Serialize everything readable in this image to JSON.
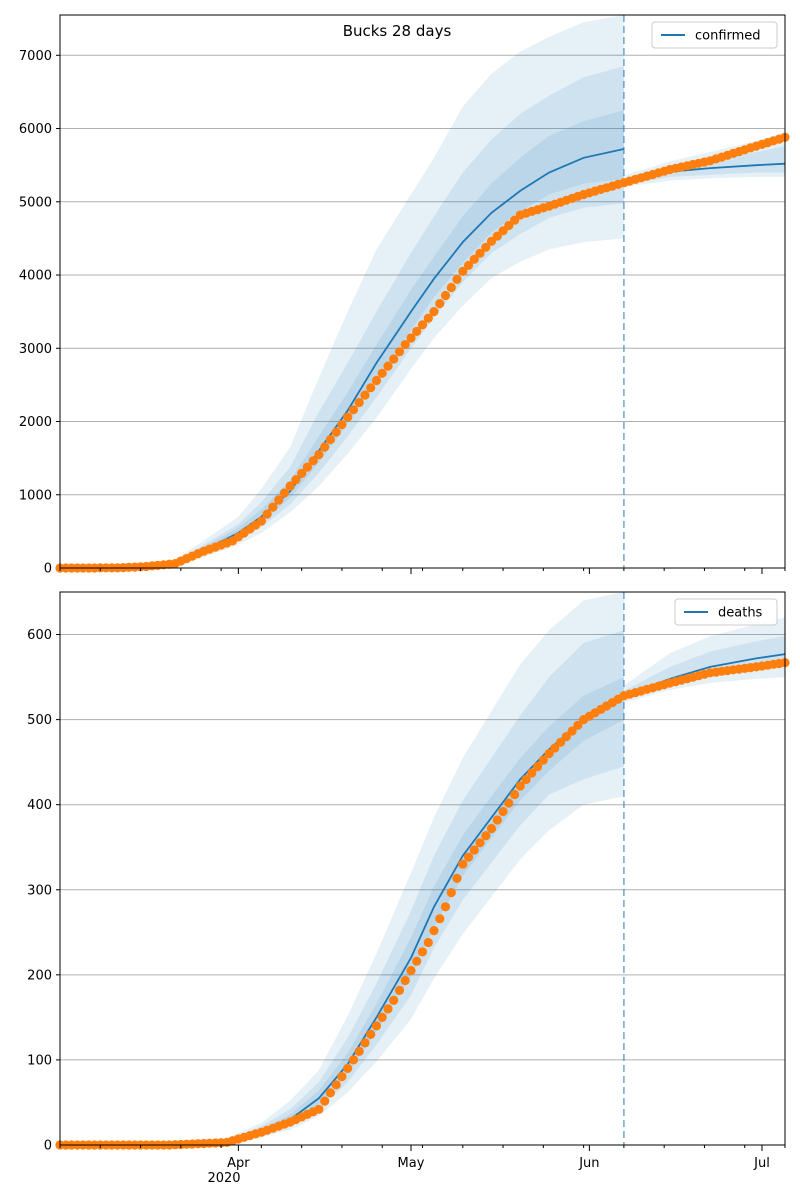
{
  "figure": {
    "title": "Bucks 28 days"
  },
  "colors": {
    "model_line": "#1f77b4",
    "observed_points": "#ff7f0e",
    "band": "#1f77b4",
    "grid": "#b0b0b0",
    "forecast_start_line": "#1f77b4"
  },
  "x_axis": {
    "start": "2020-03-01",
    "end": "2020-07-05",
    "major_ticks": [
      {
        "date": "2020-04-01",
        "label": "Apr"
      },
      {
        "date": "2020-05-01",
        "label": "May"
      },
      {
        "date": "2020-06-01",
        "label": "Jun"
      },
      {
        "date": "2020-07-01",
        "label": "Jul"
      }
    ],
    "year_label": "2020",
    "forecast_start": "2020-06-07"
  },
  "chart_data": [
    {
      "type": "line",
      "legend": "confirmed",
      "legend_position": "top-right",
      "grid": "y",
      "ylim": [
        0,
        7550
      ],
      "yticks": [
        0,
        1000,
        2000,
        3000,
        4000,
        5000,
        6000,
        7000
      ],
      "model": {
        "x": [
          "2020-03-01",
          "2020-03-10",
          "2020-03-20",
          "2020-03-25",
          "2020-04-01",
          "2020-04-05",
          "2020-04-10",
          "2020-04-15",
          "2020-04-20",
          "2020-04-25",
          "2020-05-01",
          "2020-05-05",
          "2020-05-10",
          "2020-05-15",
          "2020-05-20",
          "2020-05-25",
          "2020-05-31",
          "2020-06-07"
        ],
        "y": [
          0,
          5,
          40,
          200,
          480,
          700,
          1050,
          1600,
          2150,
          2800,
          3500,
          3950,
          4450,
          4850,
          5150,
          5400,
          5600,
          5720
        ],
        "bands": [
          {
            "lower": [
              0,
              0,
              20,
              120,
              320,
              480,
              760,
              1120,
              1560,
              2050,
              2720,
              3140,
              3580,
              3960,
              4180,
              4350,
              4450,
              4500
            ],
            "upper": [
              0,
              10,
              70,
              320,
              700,
              1080,
              1650,
              2600,
              3500,
              4350,
              5100,
              5600,
              6300,
              6750,
              7050,
              7250,
              7450,
              7550
            ]
          },
          {
            "lower": [
              0,
              0,
              26,
              150,
              380,
              560,
              870,
              1300,
              1800,
              2330,
              3000,
              3420,
              3900,
              4300,
              4560,
              4780,
              4920,
              4980
            ],
            "upper": [
              0,
              8,
              58,
              270,
              600,
              900,
              1380,
              2130,
              2800,
              3500,
              4300,
              4800,
              5400,
              5850,
              6200,
              6450,
              6700,
              6850
            ]
          },
          {
            "lower": [
              0,
              2,
              32,
              170,
              420,
              620,
              960,
              1440,
              1970,
              2560,
              3250,
              3700,
              4170,
              4580,
              4870,
              5100,
              5250,
              5310
            ],
            "upper": [
              0,
              7,
              50,
              240,
              550,
              800,
              1200,
              1800,
              2400,
              3050,
              3800,
              4250,
              4800,
              5250,
              5600,
              5900,
              6100,
              6250
            ]
          }
        ]
      },
      "forecast": {
        "x": [
          "2020-06-07",
          "2020-06-15",
          "2020-06-22",
          "2020-06-30",
          "2020-07-05"
        ],
        "y": [
          5280,
          5410,
          5460,
          5500,
          5520
        ],
        "bands": [
          {
            "lower": [
              5200,
              5290,
              5320,
              5340,
              5340
            ],
            "upper": [
              5360,
              5550,
              5680,
              5830,
              5950
            ]
          },
          {
            "lower": [
              5230,
              5340,
              5370,
              5400,
              5400
            ],
            "upper": [
              5320,
              5490,
              5580,
              5680,
              5760
            ]
          }
        ]
      },
      "observed": {
        "x": [
          "2020-03-01",
          "2020-03-06",
          "2020-03-11",
          "2020-03-16",
          "2020-03-21",
          "2020-03-26",
          "2020-03-31",
          "2020-04-05",
          "2020-04-10",
          "2020-04-15",
          "2020-04-20",
          "2020-04-25",
          "2020-04-30",
          "2020-05-05",
          "2020-05-10",
          "2020-05-15",
          "2020-05-20",
          "2020-05-25",
          "2020-05-31",
          "2020-06-07",
          "2020-06-15",
          "2020-06-22",
          "2020-06-30",
          "2020-07-05"
        ],
        "y": [
          0,
          0,
          2,
          20,
          60,
          230,
          370,
          640,
          1120,
          1550,
          2060,
          2560,
          3050,
          3500,
          4050,
          4460,
          4820,
          4940,
          5100,
          5260,
          5440,
          5560,
          5760,
          5880
        ]
      }
    },
    {
      "type": "line",
      "legend": "deaths",
      "legend_position": "top-right",
      "grid": "y",
      "ylim": [
        0,
        650
      ],
      "yticks": [
        0,
        100,
        200,
        300,
        400,
        500,
        600
      ],
      "model": {
        "x": [
          "2020-03-01",
          "2020-03-20",
          "2020-03-30",
          "2020-04-05",
          "2020-04-10",
          "2020-04-15",
          "2020-04-20",
          "2020-04-25",
          "2020-05-01",
          "2020-05-05",
          "2020-05-10",
          "2020-05-15",
          "2020-05-20",
          "2020-05-25",
          "2020-05-31",
          "2020-06-07"
        ],
        "y": [
          0,
          1,
          4,
          15,
          30,
          55,
          95,
          150,
          220,
          280,
          340,
          385,
          430,
          465,
          500,
          525
        ],
        "bands": [
          {
            "lower": [
              0,
              0,
              2,
              9,
              18,
              34,
              62,
              98,
              148,
              196,
              248,
              292,
              336,
              370,
              400,
              410
            ],
            "upper": [
              0,
              2,
              8,
              26,
              52,
              88,
              152,
              225,
              320,
              385,
              455,
              510,
              565,
              605,
              640,
              650
            ]
          },
          {
            "lower": [
              0,
              0,
              3,
              11,
              22,
              42,
              74,
              118,
              176,
              232,
              288,
              332,
              376,
              412,
              430,
              445
            ],
            "upper": [
              0,
              2,
              6,
              22,
              42,
              74,
              126,
              190,
              275,
              340,
              405,
              455,
              505,
              550,
              590,
              605
            ]
          },
          {
            "lower": [
              0,
              1,
              3,
              13,
              26,
              48,
              84,
              134,
              198,
              256,
              316,
              361,
              405,
              440,
              475,
              500
            ],
            "upper": [
              0,
              1,
              5,
              18,
              36,
              64,
              108,
              166,
              244,
              304,
              364,
              410,
              455,
              492,
              528,
              550
            ]
          }
        ]
      },
      "forecast": {
        "x": [
          "2020-06-07",
          "2020-06-15",
          "2020-06-22",
          "2020-06-30",
          "2020-07-05"
        ],
        "y": [
          528,
          548,
          562,
          572,
          577
        ],
        "bands": [
          {
            "lower": [
              520,
              535,
              543,
              548,
              550
            ],
            "upper": [
              540,
              578,
              598,
              612,
              620
            ]
          },
          {
            "lower": [
              524,
              540,
              552,
              560,
              563
            ],
            "upper": [
              534,
              562,
              580,
              592,
              598
            ]
          }
        ]
      },
      "observed": {
        "x": [
          "2020-03-01",
          "2020-03-20",
          "2020-03-30",
          "2020-04-05",
          "2020-04-10",
          "2020-04-15",
          "2020-04-20",
          "2020-04-25",
          "2020-04-28",
          "2020-05-01",
          "2020-05-04",
          "2020-05-07",
          "2020-05-10",
          "2020-05-15",
          "2020-05-20",
          "2020-05-25",
          "2020-05-31",
          "2020-06-07",
          "2020-06-15",
          "2020-06-22",
          "2020-06-30",
          "2020-07-05"
        ],
        "y": [
          0,
          0,
          3,
          15,
          27,
          42,
          90,
          140,
          170,
          205,
          238,
          280,
          330,
          372,
          422,
          460,
          500,
          528,
          543,
          555,
          562,
          567
        ]
      }
    }
  ]
}
